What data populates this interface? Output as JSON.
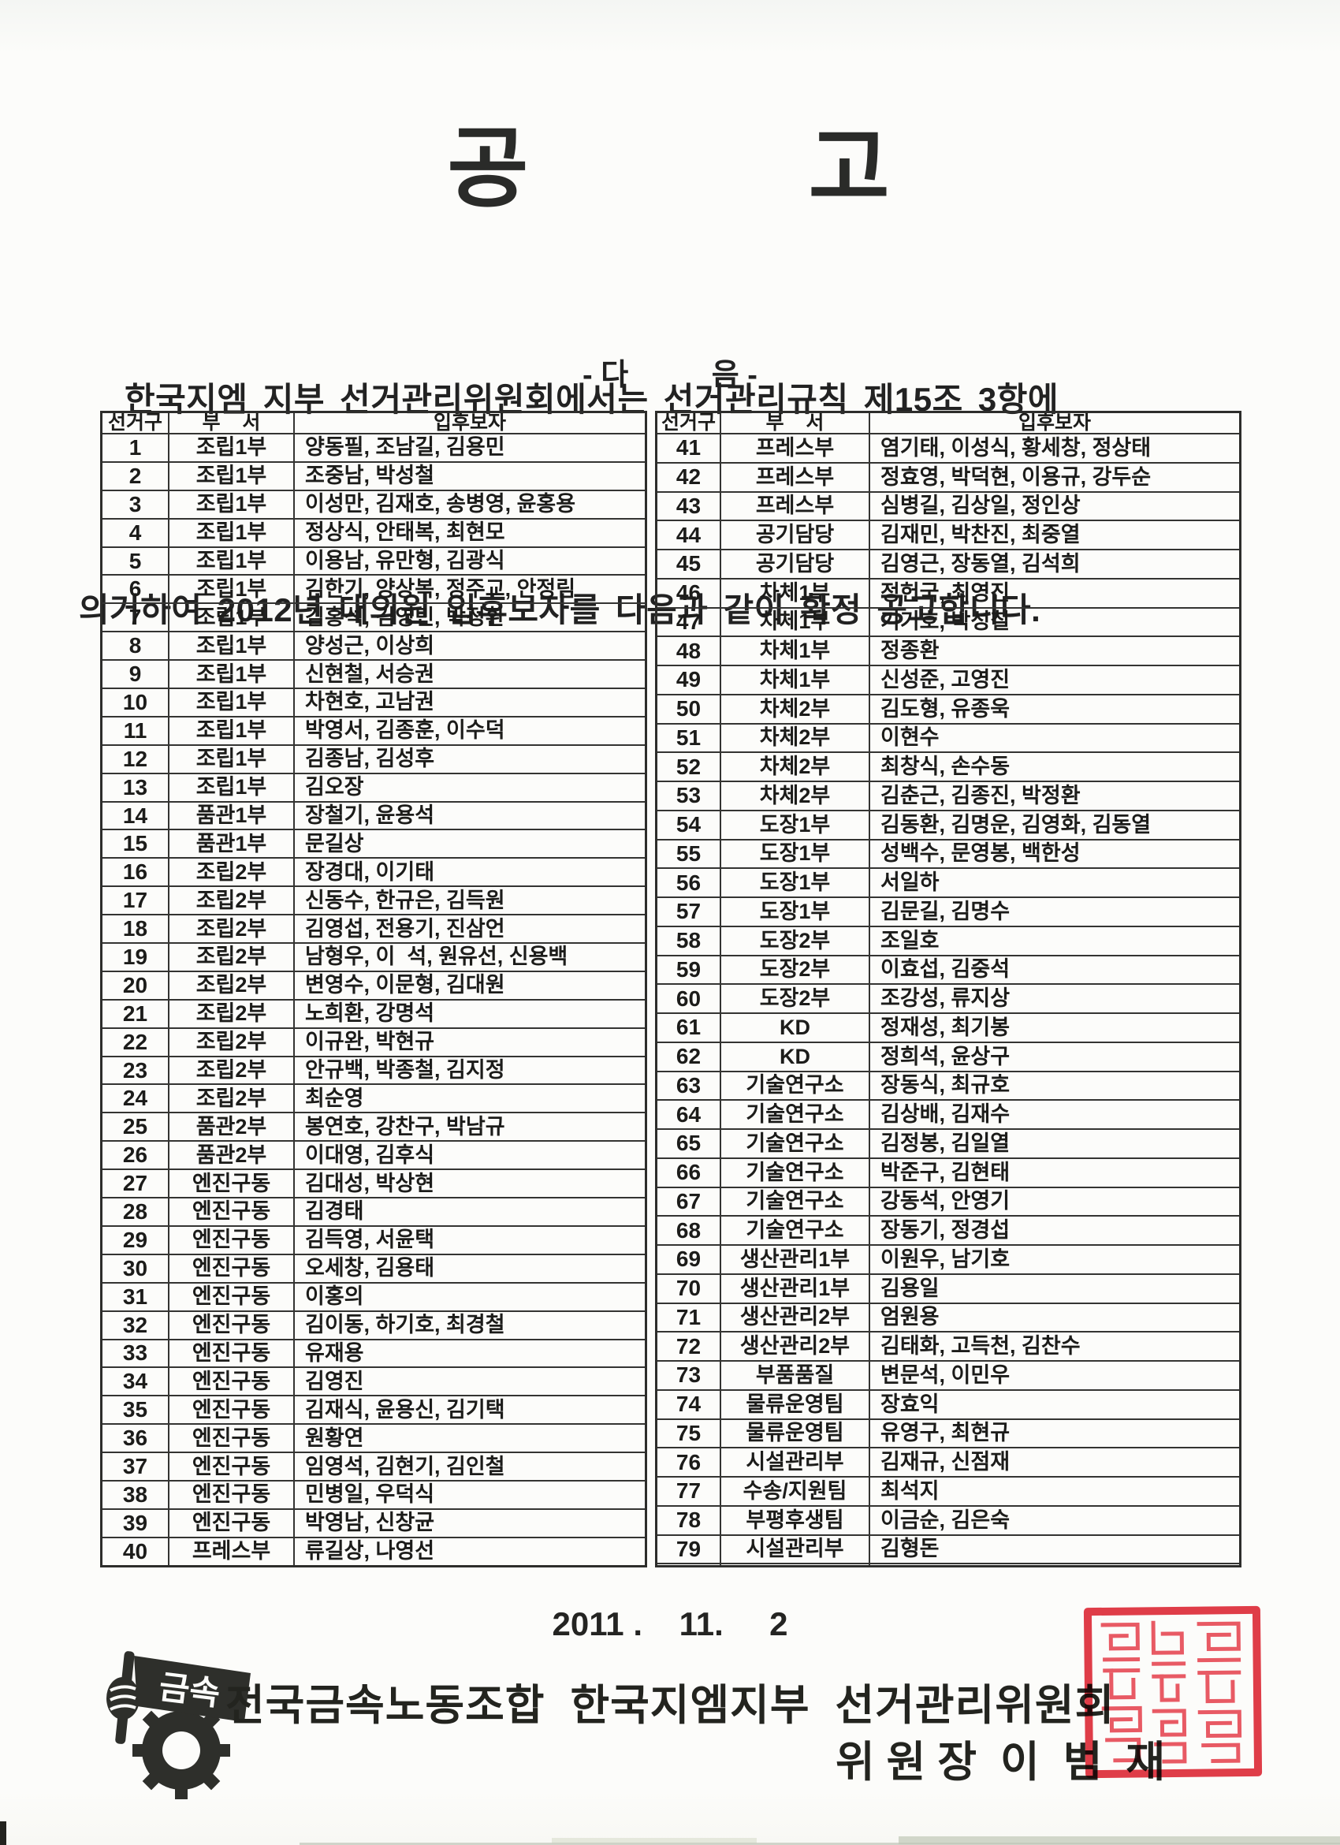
{
  "page": {
    "title": "공          고",
    "intro_lines": [
      "한국지엠 지부 선거관리위원회에서는 선거관리규칙 제15조 3항에",
      "의거하여 2012년 대의원 입후보자를 다음과 같이 확정 공고합니다."
    ],
    "next_label": "- 다          음 -",
    "date": "2011 .    11.     2",
    "footer_org": "전국금속노동조합  한국지엠지부  선거관리위원회",
    "footer_chair": "위 원 장  이  범  재",
    "logo_text": "금속",
    "stamp_color": "#e23d49",
    "ink_color": "#1d1d1d"
  },
  "table": {
    "headers": {
      "district": "선거구",
      "dept": "부    서",
      "candidates": "입후보자"
    },
    "left_rows": [
      {
        "district": "1",
        "dept": "조립1부",
        "candidates": "양동필, 조남길, 김용민"
      },
      {
        "district": "2",
        "dept": "조립1부",
        "candidates": "조중남, 박성철"
      },
      {
        "district": "3",
        "dept": "조립1부",
        "candidates": "이성만, 김재호, 송병영, 윤홍용"
      },
      {
        "district": "4",
        "dept": "조립1부",
        "candidates": "정상식, 안태복, 최현모"
      },
      {
        "district": "5",
        "dept": "조립1부",
        "candidates": "이용남, 유만형, 김광식"
      },
      {
        "district": "6",
        "dept": "조립1부",
        "candidates": "김한기, 양상복, 정주교, 안정림"
      },
      {
        "district": "7",
        "dept": "조립1부",
        "candidates": "김홍석, 김영민, 박정환"
      },
      {
        "district": "8",
        "dept": "조립1부",
        "candidates": "양성근, 이상희"
      },
      {
        "district": "9",
        "dept": "조립1부",
        "candidates": "신현철, 서승권"
      },
      {
        "district": "10",
        "dept": "조립1부",
        "candidates": "차현호, 고남권"
      },
      {
        "district": "11",
        "dept": "조립1부",
        "candidates": "박영서, 김종훈, 이수덕"
      },
      {
        "district": "12",
        "dept": "조립1부",
        "candidates": "김종남, 김성후"
      },
      {
        "district": "13",
        "dept": "조립1부",
        "candidates": "김오장"
      },
      {
        "district": "14",
        "dept": "품관1부",
        "candidates": "장철기, 윤용석"
      },
      {
        "district": "15",
        "dept": "품관1부",
        "candidates": "문길상"
      },
      {
        "district": "16",
        "dept": "조립2부",
        "candidates": "장경대, 이기태"
      },
      {
        "district": "17",
        "dept": "조립2부",
        "candidates": "신동수, 한규은, 김득원"
      },
      {
        "district": "18",
        "dept": "조립2부",
        "candidates": "김영섭, 전용기, 진삼언"
      },
      {
        "district": "19",
        "dept": "조립2부",
        "candidates": "남형우, 이  석, 원유선, 신용백"
      },
      {
        "district": "20",
        "dept": "조립2부",
        "candidates": "변영수, 이문형, 김대원"
      },
      {
        "district": "21",
        "dept": "조립2부",
        "candidates": "노희환, 강명석"
      },
      {
        "district": "22",
        "dept": "조립2부",
        "candidates": "이규완, 박현규"
      },
      {
        "district": "23",
        "dept": "조립2부",
        "candidates": "안규백, 박종철, 김지정"
      },
      {
        "district": "24",
        "dept": "조립2부",
        "candidates": "최순영"
      },
      {
        "district": "25",
        "dept": "품관2부",
        "candidates": "봉연호, 강찬구, 박남규"
      },
      {
        "district": "26",
        "dept": "품관2부",
        "candidates": "이대영, 김후식"
      },
      {
        "district": "27",
        "dept": "엔진구동",
        "candidates": "김대성, 박상현"
      },
      {
        "district": "28",
        "dept": "엔진구동",
        "candidates": "김경태"
      },
      {
        "district": "29",
        "dept": "엔진구동",
        "candidates": "김득영, 서윤택"
      },
      {
        "district": "30",
        "dept": "엔진구동",
        "candidates": "오세창, 김용태"
      },
      {
        "district": "31",
        "dept": "엔진구동",
        "candidates": "이홍의"
      },
      {
        "district": "32",
        "dept": "엔진구동",
        "candidates": "김이동, 하기호, 최경철"
      },
      {
        "district": "33",
        "dept": "엔진구동",
        "candidates": "유재용"
      },
      {
        "district": "34",
        "dept": "엔진구동",
        "candidates": "김영진"
      },
      {
        "district": "35",
        "dept": "엔진구동",
        "candidates": "김재식, 윤용신, 김기택"
      },
      {
        "district": "36",
        "dept": "엔진구동",
        "candidates": "원황연"
      },
      {
        "district": "37",
        "dept": "엔진구동",
        "candidates": "임영석, 김현기, 김인철"
      },
      {
        "district": "38",
        "dept": "엔진구동",
        "candidates": "민병일, 우덕식"
      },
      {
        "district": "39",
        "dept": "엔진구동",
        "candidates": "박영남, 신창균"
      },
      {
        "district": "40",
        "dept": "프레스부",
        "candidates": "류길상, 나영선"
      }
    ],
    "right_rows": [
      {
        "district": "41",
        "dept": "프레스부",
        "candidates": "염기태, 이성식, 황세창, 정상태"
      },
      {
        "district": "42",
        "dept": "프레스부",
        "candidates": "정효영, 박덕현, 이용규, 강두순"
      },
      {
        "district": "43",
        "dept": "프레스부",
        "candidates": "심병길, 김상일, 정인상"
      },
      {
        "district": "44",
        "dept": "공기담당",
        "candidates": "김재민, 박찬진, 최중열"
      },
      {
        "district": "45",
        "dept": "공기담당",
        "candidates": "김영근, 장동열, 김석희"
      },
      {
        "district": "46",
        "dept": "차체1부",
        "candidates": "정헌국, 최영진"
      },
      {
        "district": "47",
        "dept": "차체1부",
        "candidates": "기기호, 박성칠"
      },
      {
        "district": "48",
        "dept": "차체1부",
        "candidates": "정종환"
      },
      {
        "district": "49",
        "dept": "차체1부",
        "candidates": "신성준, 고영진"
      },
      {
        "district": "50",
        "dept": "차체2부",
        "candidates": "김도형, 유종욱"
      },
      {
        "district": "51",
        "dept": "차체2부",
        "candidates": "이현수"
      },
      {
        "district": "52",
        "dept": "차체2부",
        "candidates": "최창식, 손수동"
      },
      {
        "district": "53",
        "dept": "차체2부",
        "candidates": "김춘근, 김종진, 박정환"
      },
      {
        "district": "54",
        "dept": "도장1부",
        "candidates": "김동환, 김명운, 김영화, 김동열"
      },
      {
        "district": "55",
        "dept": "도장1부",
        "candidates": "성백수, 문영봉, 백한성"
      },
      {
        "district": "56",
        "dept": "도장1부",
        "candidates": "서일하"
      },
      {
        "district": "57",
        "dept": "도장1부",
        "candidates": "김문길, 김명수"
      },
      {
        "district": "58",
        "dept": "도장2부",
        "candidates": "조일호"
      },
      {
        "district": "59",
        "dept": "도장2부",
        "candidates": "이효섭, 김중석"
      },
      {
        "district": "60",
        "dept": "도장2부",
        "candidates": "조강성, 류지상"
      },
      {
        "district": "61",
        "dept": "KD",
        "candidates": "정재성, 최기봉"
      },
      {
        "district": "62",
        "dept": "KD",
        "candidates": "정희석, 윤상구"
      },
      {
        "district": "63",
        "dept": "기술연구소",
        "candidates": "장동식, 최규호"
      },
      {
        "district": "64",
        "dept": "기술연구소",
        "candidates": "김상배, 김재수"
      },
      {
        "district": "65",
        "dept": "기술연구소",
        "candidates": "김정봉, 김일열"
      },
      {
        "district": "66",
        "dept": "기술연구소",
        "candidates": "박준구, 김현태"
      },
      {
        "district": "67",
        "dept": "기술연구소",
        "candidates": "강동석, 안영기"
      },
      {
        "district": "68",
        "dept": "기술연구소",
        "candidates": "장동기, 정경섭"
      },
      {
        "district": "69",
        "dept": "생산관리1부",
        "candidates": "이원우, 남기호"
      },
      {
        "district": "70",
        "dept": "생산관리1부",
        "candidates": "김용일"
      },
      {
        "district": "71",
        "dept": "생산관리2부",
        "candidates": "엄원용"
      },
      {
        "district": "72",
        "dept": "생산관리2부",
        "candidates": "김태화, 고득천, 김찬수"
      },
      {
        "district": "73",
        "dept": "부품품질",
        "candidates": "변문석, 이민우"
      },
      {
        "district": "74",
        "dept": "물류운영팀",
        "candidates": "장효익"
      },
      {
        "district": "75",
        "dept": "물류운영팀",
        "candidates": "유영구, 최현규"
      },
      {
        "district": "76",
        "dept": "시설관리부",
        "candidates": "김재규, 신점재"
      },
      {
        "district": "77",
        "dept": "수송/지원팀",
        "candidates": "최석지"
      },
      {
        "district": "78",
        "dept": "부평후생팀",
        "candidates": "이금순, 김은숙"
      },
      {
        "district": "79",
        "dept": "시설관리부",
        "candidates": "김형돈"
      },
      {
        "district": "",
        "dept": "",
        "candidates": ""
      }
    ]
  }
}
